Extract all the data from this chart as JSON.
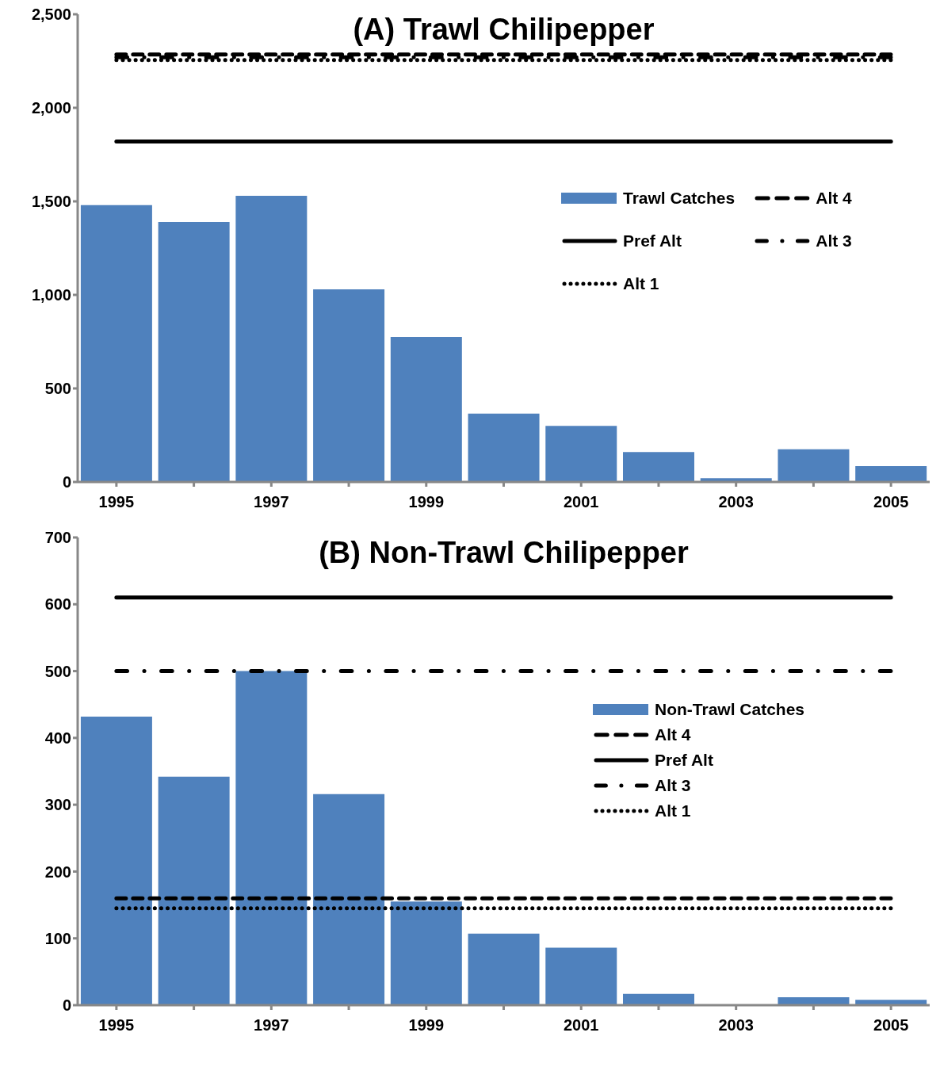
{
  "chart_data": [
    {
      "type": "bar",
      "title": "(A) Trawl Chilipepper",
      "categories": [
        "1995",
        null,
        "1997",
        null,
        "1999",
        null,
        "2001",
        null,
        "2003",
        null,
        "2005"
      ],
      "ylim": [
        0,
        2500
      ],
      "yticks": [
        0,
        500,
        {
          "value": 1000,
          "label": "1,000"
        },
        {
          "value": 1500,
          "label": "1,500"
        },
        {
          "value": 2000,
          "label": "2,000"
        },
        {
          "value": 2500,
          "label": "2,500"
        }
      ],
      "grid": false,
      "legend": "right",
      "series": [
        {
          "name": "Trawl Catches",
          "color": "#4f81bd",
          "values": [
            1480,
            1390,
            1530,
            1030,
            775,
            365,
            300,
            160,
            20,
            175,
            85
          ]
        },
        {
          "type": "line",
          "name": "Alt 4",
          "color": "#000000",
          "line_style": "dashed",
          "values": [
            2285,
            2285,
            2285,
            2285,
            2285,
            2285,
            2285,
            2285,
            2285,
            2285,
            2285
          ]
        },
        {
          "type": "line",
          "name": "Pref Alt",
          "color": "#000000",
          "line_style": "solid",
          "values": [
            1820,
            1820,
            1820,
            1820,
            1820,
            1820,
            1820,
            1820,
            1820,
            1820,
            1820
          ]
        },
        {
          "type": "line",
          "name": "Alt 3",
          "color": "#000000",
          "line_style": "dashdot",
          "values": [
            2270,
            2270,
            2270,
            2270,
            2270,
            2270,
            2270,
            2270,
            2270,
            2270,
            2270
          ]
        },
        {
          "type": "line",
          "name": "Alt 1",
          "color": "#000000",
          "line_style": "dotted",
          "values": [
            2255,
            2255,
            2255,
            2255,
            2255,
            2255,
            2255,
            2255,
            2255,
            2255,
            2255
          ]
        }
      ]
    },
    {
      "type": "bar",
      "title": "(B) Non-Trawl Chilipepper",
      "categories": [
        "1995",
        null,
        "1997",
        null,
        "1999",
        null,
        "2001",
        null,
        "2003",
        null,
        "2005"
      ],
      "ylim": [
        0,
        700
      ],
      "yticks": [
        0,
        100,
        200,
        300,
        400,
        500,
        600,
        700
      ],
      "grid": false,
      "legend": "right",
      "series": [
        {
          "name": "Non-Trawl Catches",
          "color": "#4f81bd",
          "values": [
            432,
            342,
            500,
            316,
            155,
            107,
            86,
            17,
            1,
            12,
            8
          ]
        },
        {
          "type": "line",
          "name": "Alt 4",
          "color": "#000000",
          "line_style": "dashed",
          "values": [
            160,
            160,
            160,
            160,
            160,
            160,
            160,
            160,
            160,
            160,
            160
          ]
        },
        {
          "type": "line",
          "name": "Pref Alt",
          "color": "#000000",
          "line_style": "solid",
          "values": [
            610,
            610,
            610,
            610,
            610,
            610,
            610,
            610,
            610,
            610,
            610
          ]
        },
        {
          "type": "line",
          "name": "Alt 3",
          "color": "#000000",
          "line_style": "dashdot",
          "values": [
            500,
            500,
            500,
            500,
            500,
            500,
            500,
            500,
            500,
            500,
            500
          ]
        },
        {
          "type": "line",
          "name": "Alt 1",
          "color": "#000000",
          "line_style": "dotted",
          "values": [
            145,
            145,
            145,
            145,
            145,
            145,
            145,
            145,
            145,
            145,
            145
          ]
        }
      ]
    }
  ]
}
